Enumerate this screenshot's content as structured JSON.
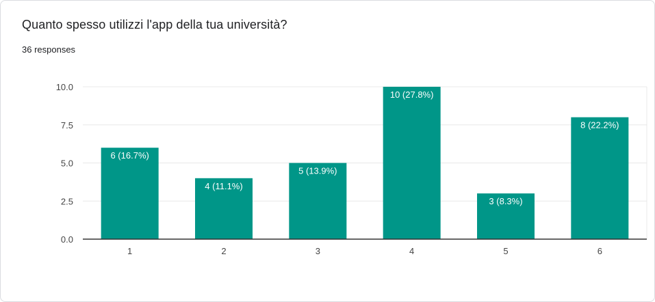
{
  "header": {
    "question": "Quanto spesso utilizzi l'app della tua università?",
    "responses": "36 responses"
  },
  "colors": {
    "bar": "#009688",
    "grid": "#e8e8e8",
    "axis": "#333333"
  },
  "chart_data": {
    "type": "bar",
    "title": "Quanto spesso utilizzi l'app della tua università?",
    "categories": [
      "1",
      "2",
      "3",
      "4",
      "5",
      "6"
    ],
    "values": [
      6,
      4,
      5,
      10,
      3,
      8
    ],
    "data_labels": [
      "6 (16.7%)",
      "4 (11.1%)",
      "5 (13.9%)",
      "10 (27.8%)",
      "3 (8.3%)",
      "8 (22.2%)"
    ],
    "y_ticks": [
      "0.0",
      "2.5",
      "5.0",
      "7.5",
      "10.0"
    ],
    "y_tick_values": [
      0,
      2.5,
      5,
      7.5,
      10
    ],
    "ylim": [
      0,
      10
    ],
    "xlabel": "",
    "ylabel": "",
    "grid": true
  }
}
